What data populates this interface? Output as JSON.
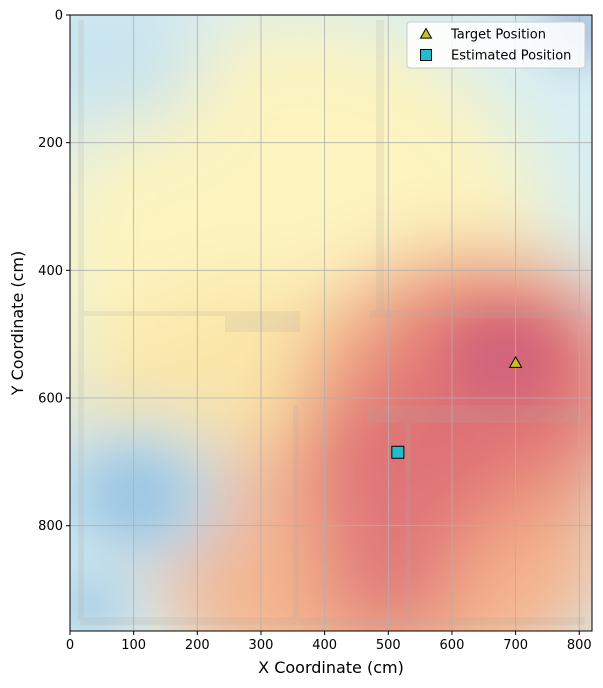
{
  "chart_data": {
    "type": "scatter",
    "title": "",
    "xlabel": "X Coordinate (cm)",
    "ylabel": "Y Coordinate (cm)",
    "xlim": [
      0,
      820
    ],
    "ylim": [
      965,
      0
    ],
    "y_inverted": true,
    "xticks": [
      0,
      100,
      200,
      300,
      400,
      500,
      600,
      700,
      800
    ],
    "yticks": [
      0,
      200,
      400,
      600,
      800
    ],
    "grid": true,
    "legend_position": "top-right",
    "background": "signal-strength heatmap overlaid on a floor plan",
    "series": [
      {
        "name": "Target Position",
        "marker": "triangle",
        "color": "#c9c21e",
        "points": [
          {
            "x": 700,
            "y": 545
          }
        ]
      },
      {
        "name": "Estimated Position",
        "marker": "square",
        "color": "#22bccf",
        "points": [
          {
            "x": 515,
            "y": 685
          }
        ]
      }
    ]
  }
}
